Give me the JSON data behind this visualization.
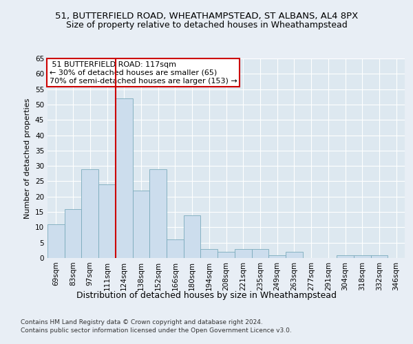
{
  "title_line1": "51, BUTTERFIELD ROAD, WHEATHAMPSTEAD, ST ALBANS, AL4 8PX",
  "title_line2": "Size of property relative to detached houses in Wheathampstead",
  "xlabel": "Distribution of detached houses by size in Wheathampstead",
  "ylabel": "Number of detached properties",
  "footer_line1": "Contains HM Land Registry data © Crown copyright and database right 2024.",
  "footer_line2": "Contains public sector information licensed under the Open Government Licence v3.0.",
  "categories": [
    "69sqm",
    "83sqm",
    "97sqm",
    "111sqm",
    "124sqm",
    "138sqm",
    "152sqm",
    "166sqm",
    "180sqm",
    "194sqm",
    "208sqm",
    "221sqm",
    "235sqm",
    "249sqm",
    "263sqm",
    "277sqm",
    "291sqm",
    "304sqm",
    "318sqm",
    "332sqm",
    "346sqm"
  ],
  "values": [
    11,
    16,
    29,
    24,
    52,
    22,
    29,
    6,
    14,
    3,
    2,
    3,
    3,
    1,
    2,
    0,
    0,
    1,
    1,
    1,
    0
  ],
  "bar_color": "#ccdded",
  "bar_edge_color": "#7aaabb",
  "redline_color": "#cc0000",
  "redline_x": 3.5,
  "ylim": [
    0,
    65
  ],
  "yticks": [
    0,
    5,
    10,
    15,
    20,
    25,
    30,
    35,
    40,
    45,
    50,
    55,
    60,
    65
  ],
  "background_color": "#e8eef5",
  "plot_bg_color": "#dde8f0",
  "grid_color": "#ffffff",
  "annotation_line1": "51 BUTTERFIELD ROAD: 117sqm",
  "annotation_line2": "← 30% of detached houses are smaller (65)",
  "annotation_line3": "70% of semi-detached houses are larger (153) →",
  "annotation_box_color": "#ffffff",
  "annotation_box_edge": "#cc0000",
  "title_fontsize": 9.5,
  "subtitle_fontsize": 9.0,
  "tick_fontsize": 7.5,
  "ylabel_fontsize": 8,
  "xlabel_fontsize": 9,
  "annotation_fontsize": 8,
  "footer_fontsize": 6.5
}
